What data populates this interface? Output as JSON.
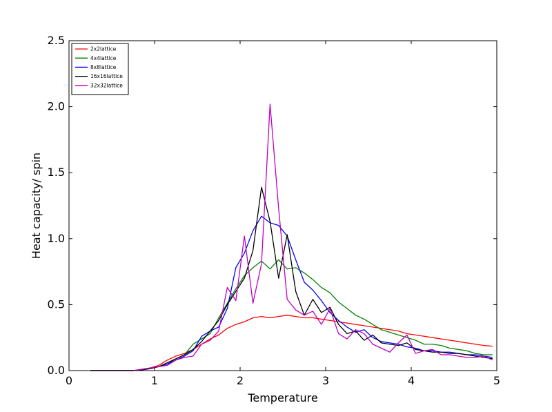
{
  "chart_data": {
    "type": "line",
    "title": "",
    "xlabel": "Temperature",
    "ylabel": "Heat capacity/ spin",
    "xlim": [
      0,
      5
    ],
    "ylim": [
      0,
      2.5
    ],
    "xticks": [
      "0",
      "1",
      "2",
      "3",
      "4",
      "5"
    ],
    "yticks": [
      "0.0",
      "0.5",
      "1.0",
      "1.5",
      "2.0",
      "2.5"
    ],
    "grid": false,
    "legend_position": "top-left",
    "series": [
      {
        "name": "2x2lattice",
        "color": "#ff0000",
        "x": [
          0.25,
          0.35,
          0.45,
          0.55,
          0.65,
          0.75,
          0.85,
          0.95,
          1.05,
          1.15,
          1.25,
          1.35,
          1.45,
          1.55,
          1.65,
          1.75,
          1.85,
          1.95,
          2.05,
          2.15,
          2.25,
          2.35,
          2.45,
          2.55,
          2.65,
          2.75,
          2.85,
          2.95,
          3.05,
          3.15,
          3.25,
          3.35,
          3.45,
          3.55,
          3.65,
          3.75,
          3.85,
          3.95,
          4.05,
          4.15,
          4.25,
          4.35,
          4.45,
          4.55,
          4.65,
          4.75,
          4.85,
          4.95
        ],
        "y": [
          0,
          0,
          0,
          0,
          0,
          0,
          0.01,
          0.02,
          0.04,
          0.08,
          0.11,
          0.13,
          0.16,
          0.2,
          0.24,
          0.27,
          0.32,
          0.35,
          0.37,
          0.4,
          0.41,
          0.4,
          0.41,
          0.42,
          0.41,
          0.4,
          0.4,
          0.39,
          0.38,
          0.37,
          0.36,
          0.35,
          0.34,
          0.33,
          0.32,
          0.31,
          0.3,
          0.28,
          0.27,
          0.26,
          0.25,
          0.24,
          0.23,
          0.22,
          0.21,
          0.2,
          0.19,
          0.185
        ]
      },
      {
        "name": "4x4lattice",
        "color": "#008000",
        "x": [
          0.25,
          0.35,
          0.45,
          0.55,
          0.65,
          0.75,
          0.85,
          0.95,
          1.05,
          1.15,
          1.25,
          1.35,
          1.45,
          1.55,
          1.65,
          1.75,
          1.85,
          1.95,
          2.05,
          2.15,
          2.25,
          2.35,
          2.45,
          2.55,
          2.65,
          2.75,
          2.85,
          2.95,
          3.05,
          3.15,
          3.25,
          3.35,
          3.45,
          3.55,
          3.65,
          3.75,
          3.85,
          3.95,
          4.05,
          4.15,
          4.25,
          4.35,
          4.45,
          4.55,
          4.65,
          4.75,
          4.85,
          4.95
        ],
        "y": [
          0,
          0,
          0,
          0,
          0,
          0,
          0.01,
          0.02,
          0.03,
          0.05,
          0.09,
          0.12,
          0.2,
          0.24,
          0.28,
          0.4,
          0.51,
          0.62,
          0.72,
          0.78,
          0.83,
          0.77,
          0.84,
          0.77,
          0.78,
          0.74,
          0.69,
          0.63,
          0.59,
          0.52,
          0.47,
          0.42,
          0.39,
          0.35,
          0.31,
          0.29,
          0.27,
          0.25,
          0.23,
          0.2,
          0.2,
          0.19,
          0.17,
          0.16,
          0.15,
          0.13,
          0.12,
          0.12
        ]
      },
      {
        "name": "8x8lattice",
        "color": "#0000ff",
        "x": [
          0.25,
          0.35,
          0.45,
          0.55,
          0.65,
          0.75,
          0.85,
          0.95,
          1.05,
          1.15,
          1.25,
          1.35,
          1.45,
          1.55,
          1.65,
          1.75,
          1.85,
          1.95,
          2.05,
          2.15,
          2.25,
          2.35,
          2.45,
          2.55,
          2.65,
          2.75,
          2.85,
          2.95,
          3.05,
          3.15,
          3.25,
          3.35,
          3.45,
          3.55,
          3.65,
          3.75,
          3.85,
          3.95,
          4.05,
          4.15,
          4.25,
          4.35,
          4.45,
          4.55,
          4.65,
          4.75,
          4.85,
          4.95
        ],
        "y": [
          0,
          0,
          0,
          0,
          0,
          0,
          0.005,
          0.015,
          0.03,
          0.05,
          0.08,
          0.11,
          0.15,
          0.26,
          0.3,
          0.33,
          0.47,
          0.78,
          0.89,
          1.06,
          1.17,
          1.12,
          1.1,
          1.02,
          0.84,
          0.67,
          0.61,
          0.53,
          0.44,
          0.38,
          0.33,
          0.29,
          0.31,
          0.25,
          0.22,
          0.21,
          0.2,
          0.18,
          0.17,
          0.15,
          0.15,
          0.14,
          0.14,
          0.13,
          0.12,
          0.12,
          0.11,
          0.1
        ]
      },
      {
        "name": "16x16lattice",
        "color": "#000000",
        "x": [
          0.25,
          0.35,
          0.45,
          0.55,
          0.65,
          0.75,
          0.85,
          0.95,
          1.05,
          1.15,
          1.25,
          1.35,
          1.45,
          1.55,
          1.65,
          1.75,
          1.85,
          1.95,
          2.05,
          2.15,
          2.25,
          2.35,
          2.45,
          2.55,
          2.65,
          2.75,
          2.85,
          2.95,
          3.05,
          3.15,
          3.25,
          3.35,
          3.45,
          3.55,
          3.65,
          3.75,
          3.85,
          3.95,
          4.05,
          4.15,
          4.25,
          4.35,
          4.45,
          4.55,
          4.65,
          4.75,
          4.85,
          4.95
        ],
        "y": [
          0,
          0,
          0,
          0,
          0,
          0,
          0.005,
          0.015,
          0.03,
          0.06,
          0.09,
          0.12,
          0.16,
          0.22,
          0.3,
          0.38,
          0.5,
          0.6,
          0.7,
          0.91,
          1.39,
          1.13,
          0.7,
          1.03,
          0.6,
          0.42,
          0.54,
          0.44,
          0.48,
          0.35,
          0.28,
          0.3,
          0.23,
          0.27,
          0.21,
          0.2,
          0.19,
          0.21,
          0.16,
          0.15,
          0.14,
          0.14,
          0.13,
          0.13,
          0.12,
          0.11,
          0.1,
          0.09
        ]
      },
      {
        "name": "32x32lattice",
        "color": "#bf00bf",
        "x": [
          0.25,
          0.35,
          0.45,
          0.55,
          0.65,
          0.75,
          0.85,
          0.95,
          1.05,
          1.15,
          1.25,
          1.35,
          1.45,
          1.55,
          1.65,
          1.75,
          1.85,
          1.95,
          2.05,
          2.15,
          2.25,
          2.35,
          2.45,
          2.55,
          2.65,
          2.75,
          2.85,
          2.95,
          3.05,
          3.15,
          3.25,
          3.35,
          3.45,
          3.55,
          3.65,
          3.75,
          3.85,
          3.95,
          4.05,
          4.15,
          4.25,
          4.35,
          4.45,
          4.55,
          4.65,
          4.75,
          4.85,
          4.95
        ],
        "y": [
          0,
          0,
          0,
          0,
          0,
          0,
          0.01,
          0.02,
          0.03,
          0.04,
          0.08,
          0.1,
          0.11,
          0.2,
          0.23,
          0.3,
          0.63,
          0.53,
          1.02,
          0.51,
          0.81,
          2.02,
          1.23,
          0.54,
          0.46,
          0.42,
          0.45,
          0.35,
          0.47,
          0.28,
          0.24,
          0.31,
          0.28,
          0.2,
          0.17,
          0.14,
          0.21,
          0.27,
          0.13,
          0.15,
          0.16,
          0.12,
          0.12,
          0.11,
          0.1,
          0.1,
          0.11,
          0.08
        ]
      }
    ]
  }
}
